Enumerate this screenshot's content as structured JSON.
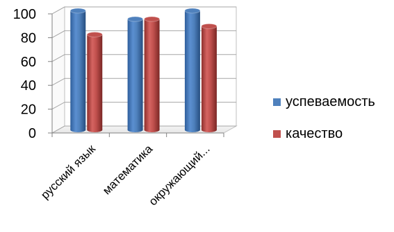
{
  "chart_data": {
    "type": "bar",
    "categories": [
      "русский язык",
      "математика",
      "окружающий..."
    ],
    "series": [
      {
        "name": "успеваемость",
        "values": [
          100,
          93,
          100
        ],
        "color": "#4F81BD"
      },
      {
        "name": "качество",
        "values": [
          80,
          93,
          87
        ],
        "color": "#C0504D"
      }
    ],
    "ylim": [
      0,
      100
    ],
    "yticks": [
      0,
      20,
      40,
      60,
      80,
      100
    ],
    "grid": true,
    "legend_position": "right",
    "style": "3d-cylinder"
  }
}
